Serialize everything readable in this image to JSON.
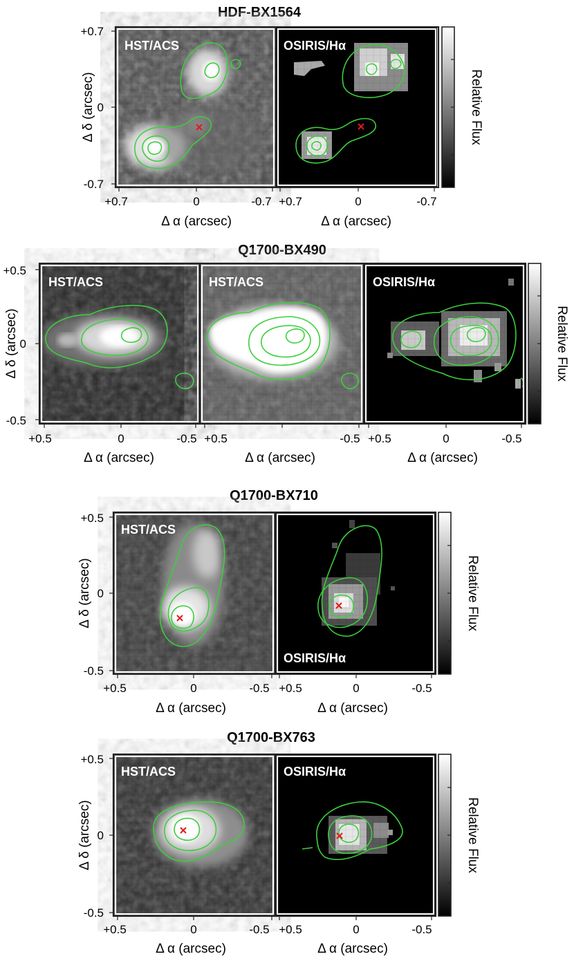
{
  "figure": {
    "groups": [
      {
        "title": "HDF-BX1564",
        "y_ticks": [
          "+0.7",
          "0",
          "-0.7"
        ],
        "x_ticks": [
          "+0.7",
          "0",
          "-0.7"
        ],
        "y_label": "Δ δ (arcsec)",
        "x_label": "Δ α (arcsec)",
        "colorbar_label": "Relative Flux",
        "panels": [
          {
            "label": "HST/ACS",
            "kind": "hst",
            "cross": true
          },
          {
            "label": "OSIRIS/Hα",
            "kind": "osiris",
            "cross": true
          }
        ]
      },
      {
        "title": "Q1700-BX490",
        "y_ticks": [
          "+0.5",
          "0",
          "-0.5"
        ],
        "x_ticks": [
          "+0.5",
          "0",
          "-0.5"
        ],
        "y_label": "Δ δ (arcsec)",
        "x_label": "Δ α (arcsec)",
        "colorbar_label": "Relative Flux",
        "panels": [
          {
            "label": "HST/ACS",
            "kind": "hst",
            "cross": false
          },
          {
            "label": "HST/ACS",
            "kind": "hst-sat",
            "cross": false
          },
          {
            "label": "OSIRIS/Hα",
            "kind": "osiris",
            "cross": false
          }
        ]
      },
      {
        "title": "Q1700-BX710",
        "y_ticks": [
          "+0.5",
          "0",
          "-0.5"
        ],
        "x_ticks": [
          "+0.5",
          "0",
          "-0.5"
        ],
        "y_label": "Δ δ (arcsec)",
        "x_label": "Δ α (arcsec)",
        "colorbar_label": "Relative Flux",
        "panels": [
          {
            "label": "HST/ACS",
            "kind": "hst",
            "cross": true
          },
          {
            "label": "OSIRIS/Hα",
            "kind": "osiris",
            "cross": true
          }
        ]
      },
      {
        "title": "Q1700-BX763",
        "y_ticks": [
          "+0.5",
          "0",
          "-0.5"
        ],
        "x_ticks": [
          "+0.5",
          "0",
          "-0.5"
        ],
        "y_label": "Δ δ (arcsec)",
        "x_label": "Δ α (arcsec)",
        "colorbar_label": "Relative Flux",
        "panels": [
          {
            "label": "HST/ACS",
            "kind": "hst",
            "cross": true
          },
          {
            "label": "OSIRIS/Hα",
            "kind": "osiris",
            "cross": true
          }
        ]
      }
    ]
  }
}
